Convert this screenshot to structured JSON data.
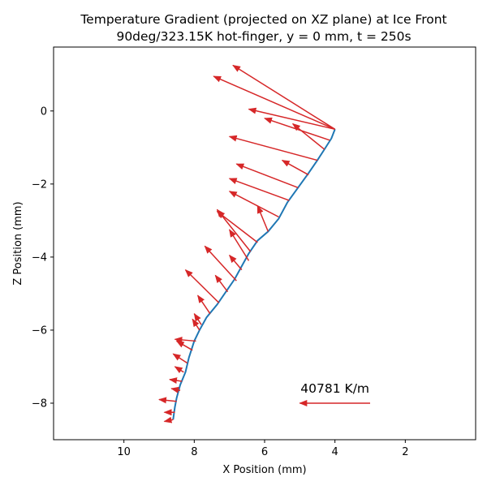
{
  "chart_data": {
    "type": "quiver",
    "title_line1": "Temperature Gradient (projected on XZ plane) at Ice Front",
    "title_line2": "90deg/323.15K hot-finger, y = 0 mm, t = 250s",
    "xlabel": "X Position (mm)",
    "ylabel": "Z Position (mm)",
    "xlim": [
      12.0,
      0.0
    ],
    "ylim": [
      -9.0,
      1.75
    ],
    "x_inverted": true,
    "grid": false,
    "xticks": [
      10,
      8,
      6,
      4,
      2
    ],
    "xtick_labels": [
      "10",
      "8",
      "6",
      "4",
      "2"
    ],
    "yticks": [
      0,
      -2,
      -4,
      -6,
      -8
    ],
    "ytick_labels": [
      "0",
      "−2",
      "−4",
      "−6",
      "−8"
    ],
    "front_color": "#1f77b4",
    "arrow_color": "#d62728",
    "front_line": [
      [
        4.0,
        -0.5
      ],
      [
        4.1,
        -0.75
      ],
      [
        4.3,
        -1.05
      ],
      [
        4.5,
        -1.35
      ],
      [
        4.75,
        -1.7
      ],
      [
        5.05,
        -2.1
      ],
      [
        5.35,
        -2.5
      ],
      [
        5.6,
        -2.95
      ],
      [
        5.9,
        -3.3
      ],
      [
        6.2,
        -3.55
      ],
      [
        6.45,
        -3.9
      ],
      [
        6.65,
        -4.25
      ],
      [
        6.85,
        -4.6
      ],
      [
        7.1,
        -4.95
      ],
      [
        7.35,
        -5.3
      ],
      [
        7.65,
        -5.65
      ],
      [
        7.85,
        -6.0
      ],
      [
        8.0,
        -6.3
      ],
      [
        8.15,
        -6.75
      ],
      [
        8.25,
        -7.15
      ],
      [
        8.4,
        -7.5
      ],
      [
        8.5,
        -7.85
      ],
      [
        8.55,
        -8.1
      ],
      [
        8.6,
        -8.45
      ]
    ],
    "arrows": [
      [
        4.0,
        -0.5,
        6.9,
        1.25
      ],
      [
        4.0,
        -0.5,
        7.45,
        0.95
      ],
      [
        4.0,
        -0.5,
        6.45,
        0.05
      ],
      [
        4.15,
        -0.8,
        6.0,
        -0.2
      ],
      [
        4.3,
        -1.05,
        5.2,
        -0.35
      ],
      [
        4.5,
        -1.35,
        7.0,
        -0.7
      ],
      [
        4.75,
        -1.75,
        5.5,
        -1.35
      ],
      [
        5.05,
        -2.1,
        6.8,
        -1.45
      ],
      [
        5.3,
        -2.45,
        7.0,
        -1.85
      ],
      [
        5.6,
        -2.9,
        7.0,
        -2.2
      ],
      [
        5.9,
        -3.3,
        6.2,
        -2.6
      ],
      [
        6.2,
        -3.6,
        7.35,
        -2.75
      ],
      [
        6.4,
        -3.85,
        7.35,
        -2.7
      ],
      [
        6.45,
        -4.1,
        7.0,
        -3.25
      ],
      [
        6.65,
        -4.35,
        7.0,
        -3.95
      ],
      [
        6.8,
        -4.65,
        7.7,
        -3.7
      ],
      [
        7.05,
        -4.95,
        7.4,
        -4.5
      ],
      [
        7.3,
        -5.25,
        8.25,
        -4.35
      ],
      [
        7.55,
        -5.55,
        7.9,
        -5.05
      ],
      [
        7.8,
        -5.85,
        8.0,
        -5.55
      ],
      [
        7.85,
        -6.0,
        8.05,
        -5.7
      ],
      [
        7.95,
        -6.3,
        8.55,
        -6.25
      ],
      [
        8.05,
        -6.55,
        8.5,
        -6.3
      ],
      [
        8.2,
        -6.9,
        8.6,
        -6.65
      ],
      [
        8.3,
        -7.15,
        8.55,
        -7.0
      ],
      [
        8.35,
        -7.4,
        8.7,
        -7.35
      ],
      [
        8.4,
        -7.65,
        8.65,
        -7.6
      ],
      [
        8.5,
        -7.95,
        9.0,
        -7.9
      ],
      [
        8.55,
        -8.25,
        8.85,
        -8.25
      ],
      [
        8.6,
        -8.45,
        8.85,
        -8.5
      ]
    ],
    "reference": {
      "label": "40781 K/m",
      "x_tail": 3.0,
      "y": -8.0,
      "x_head": 5.0
    }
  }
}
